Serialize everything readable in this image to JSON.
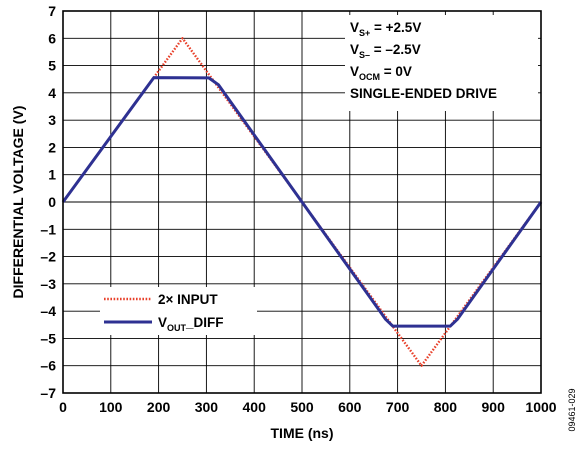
{
  "chart_data": {
    "type": "line",
    "xlabel": "TIME (ns)",
    "ylabel": "DIFFERENTIAL VOLTAGE (V)",
    "xlim": [
      0,
      1000
    ],
    "ylim": [
      -7,
      7
    ],
    "xticks": [
      0,
      100,
      200,
      300,
      400,
      500,
      600,
      700,
      800,
      900,
      1000
    ],
    "yticks": [
      7,
      6,
      5,
      4,
      3,
      2,
      1,
      0,
      -1,
      -2,
      -3,
      -4,
      -5,
      -6,
      -7
    ],
    "xtick_labels": [
      "0",
      "100",
      "200",
      "300",
      "400",
      "500",
      "600",
      "700",
      "800",
      "900",
      "1000"
    ],
    "ytick_labels": [
      "7",
      "6",
      "5",
      "4",
      "3",
      "2",
      "1",
      "0",
      "–1",
      "–2",
      "–3",
      "–4",
      "–5",
      "–6",
      "–7"
    ],
    "grid": true,
    "legend_position": "lower-left",
    "series": [
      {
        "name": "2× INPUT",
        "legend_label": "2× INPUT",
        "style": "dotted",
        "color": "#e8402a",
        "x": [
          0,
          250,
          750,
          1000
        ],
        "y": [
          0,
          6,
          -6,
          0
        ]
      },
      {
        "name": "VOUT_DIFF",
        "legend_label_main": "V",
        "legend_label_sub": "OUT",
        "legend_label_rest": "_DIFF",
        "style": "solid",
        "color": "#2e3192",
        "x": [
          0,
          190,
          305,
          325,
          500,
          675,
          690,
          810,
          825,
          1000
        ],
        "y": [
          0,
          4.56,
          4.55,
          4.3,
          0,
          -4.3,
          -4.55,
          -4.55,
          -4.3,
          0
        ]
      }
    ],
    "annotations": [
      {
        "main": "V",
        "sub": "S+",
        "rest": " = +2.5V"
      },
      {
        "main": "V",
        "sub": "S–",
        "rest": " = –2.5V"
      },
      {
        "main": "V",
        "sub": "OCM",
        "rest": " = 0V"
      },
      {
        "main": "SINGLE-ENDED DRIVE",
        "sub": "",
        "rest": ""
      }
    ],
    "figure_id": "09461-029"
  }
}
